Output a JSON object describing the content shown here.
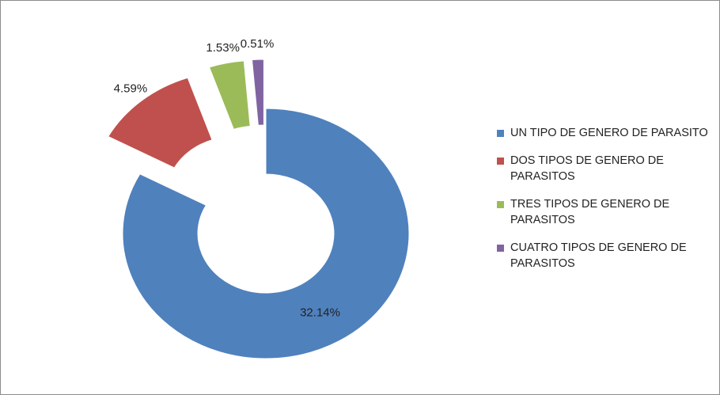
{
  "chart_data": {
    "type": "donut",
    "categories": [
      "UN TIPO DE GENERO DE PARASITO",
      "DOS TIPOS DE GENERO DE PARASITOS",
      "TRES TIPOS DE GENERO DE PARASITOS",
      "CUATRO TIPOS DE GENERO DE PARASITOS"
    ],
    "values": [
      32.14,
      4.59,
      1.53,
      0.51
    ],
    "value_labels": [
      "32.14%",
      "4.59%",
      "1.53%",
      "0.51%"
    ],
    "colors": [
      "#4f81bd",
      "#c0504d",
      "#9bbb59",
      "#8064a2"
    ],
    "legend": "right"
  }
}
